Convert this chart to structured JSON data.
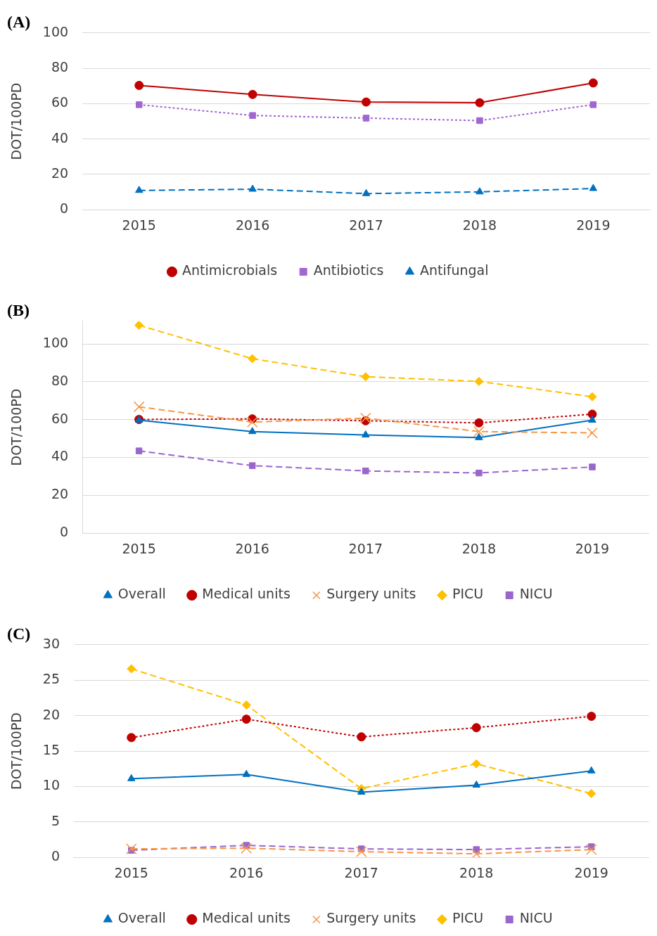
{
  "chart_data": [
    {
      "type": "line",
      "title": "(A)",
      "ylabel": "DOT/100PD",
      "categories": [
        "2015",
        "2016",
        "2017",
        "2018",
        "2019"
      ],
      "ylim": [
        0,
        100
      ],
      "yticks": [
        0,
        20,
        40,
        60,
        80,
        100
      ],
      "grid": "y",
      "legend": "bottom",
      "series": [
        {
          "name": "Antimicrobials",
          "color": "#c00000",
          "marker": "circle",
          "line_style": "solid",
          "values": [
            70.3,
            65.2,
            60.9,
            60.5,
            71.7
          ]
        },
        {
          "name": "Antibiotics",
          "color": "#a066d3",
          "marker": "square",
          "line_style": "dotted",
          "values": [
            59.4,
            53.3,
            51.8,
            50.4,
            59.4
          ]
        },
        {
          "name": "Antifungal",
          "color": "#0070c0",
          "marker": "triangle",
          "line_style": "dashed",
          "values": [
            10.9,
            11.6,
            9.1,
            10.1,
            12.0
          ]
        }
      ]
    },
    {
      "type": "line",
      "title": "(B)",
      "ylabel": "DOT/100PD",
      "categories": [
        "2015",
        "2016",
        "2017",
        "2018",
        "2019"
      ],
      "ylim": [
        0,
        112
      ],
      "yticks": [
        0,
        20,
        40,
        60,
        80,
        100
      ],
      "grid": "y",
      "legend": "bottom",
      "series": [
        {
          "name": "Overall",
          "color": "#0070c0",
          "marker": "triangle",
          "line_style": "solid",
          "values": [
            59.7,
            53.7,
            51.9,
            50.5,
            59.7
          ]
        },
        {
          "name": "Medical units",
          "color": "#c00000",
          "marker": "circle",
          "line_style": "dotted",
          "values": [
            60.1,
            60.4,
            59.4,
            58.3,
            62.9
          ]
        },
        {
          "name": "Surgery units",
          "color": "#f79646",
          "marker": "cross",
          "line_style": "dashed",
          "values": [
            66.8,
            58.7,
            60.8,
            53.7,
            53.0
          ]
        },
        {
          "name": "PICU",
          "color": "#ffc000",
          "marker": "diamond",
          "line_style": "dashed",
          "values": [
            109.9,
            92.2,
            82.7,
            80.2,
            72.1
          ]
        },
        {
          "name": "NICU",
          "color": "#9966cc",
          "marker": "square",
          "line_style": "dashed",
          "values": [
            43.5,
            35.7,
            32.9,
            31.8,
            35.0
          ]
        }
      ]
    },
    {
      "type": "line",
      "title": "(C)",
      "ylabel": "DOT/100PD",
      "categories": [
        "2015",
        "2016",
        "2017",
        "2018",
        "2019"
      ],
      "ylim": [
        0,
        30
      ],
      "yticks": [
        0,
        5,
        10,
        15,
        20,
        25,
        30
      ],
      "grid": "y",
      "legend": "bottom",
      "series": [
        {
          "name": "Overall",
          "color": "#0070c0",
          "marker": "triangle",
          "line_style": "solid",
          "values": [
            11.1,
            11.7,
            9.2,
            10.2,
            12.2
          ]
        },
        {
          "name": "Medical units",
          "color": "#c00000",
          "marker": "circle",
          "line_style": "dotted",
          "values": [
            16.9,
            19.5,
            17.0,
            18.3,
            19.9
          ]
        },
        {
          "name": "Surgery units",
          "color": "#f79646",
          "marker": "cross",
          "line_style": "dashed",
          "values": [
            1.2,
            1.3,
            0.8,
            0.5,
            1.1
          ]
        },
        {
          "name": "PICU",
          "color": "#ffc000",
          "marker": "diamond",
          "line_style": "dashed",
          "values": [
            26.6,
            21.5,
            9.7,
            13.2,
            9.0
          ]
        },
        {
          "name": "NICU",
          "color": "#9966cc",
          "marker": "square",
          "line_style": "dashed",
          "values": [
            1.0,
            1.7,
            1.2,
            1.1,
            1.5
          ]
        }
      ]
    }
  ]
}
